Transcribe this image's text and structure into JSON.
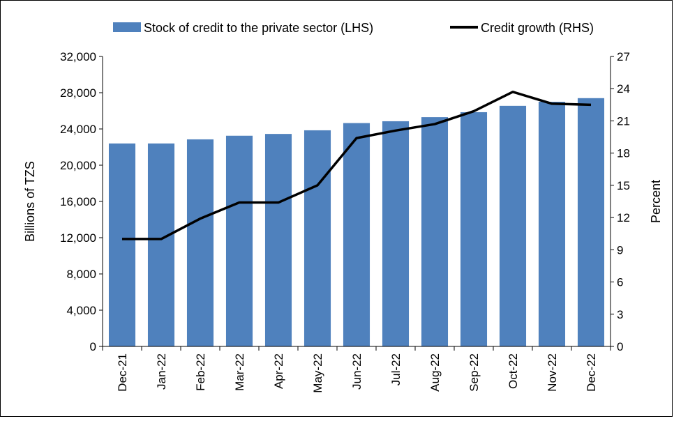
{
  "chart_data": {
    "type": "bar",
    "categories": [
      "Dec-21",
      "Jan-22",
      "Feb-22",
      "Mar-22",
      "Apr-22",
      "May-22",
      "Jun-22",
      "Jul-22",
      "Aug-22",
      "Sep-22",
      "Oct-22",
      "Nov-22",
      "Dec-22"
    ],
    "series": [
      {
        "name": "Stock of credit to the private sector (LHS)",
        "type": "bar",
        "axis": "left",
        "color": "#4f81bd",
        "values": [
          22400,
          22400,
          22850,
          23250,
          23450,
          23850,
          24650,
          24850,
          25300,
          25850,
          26550,
          27000,
          27400
        ]
      },
      {
        "name": "Credit growth (RHS)",
        "type": "line",
        "axis": "right",
        "color": "#000000",
        "values": [
          10.0,
          10.0,
          11.9,
          13.4,
          13.4,
          15.0,
          19.4,
          20.1,
          20.7,
          21.9,
          23.7,
          22.6,
          22.5
        ]
      }
    ],
    "ylabel": "Billions of TZS",
    "ylim": [
      0,
      32000
    ],
    "yticks": [
      "0",
      "4,000",
      "8,000",
      "12,000",
      "16,000",
      "20,000",
      "24,000",
      "28,000",
      "32,000"
    ],
    "y2label": "Percent",
    "y2lim": [
      0,
      27
    ],
    "y2ticks": [
      "0",
      "3",
      "6",
      "9",
      "12",
      "15",
      "18",
      "21",
      "24",
      "27"
    ],
    "grid": false,
    "legend": "top"
  }
}
